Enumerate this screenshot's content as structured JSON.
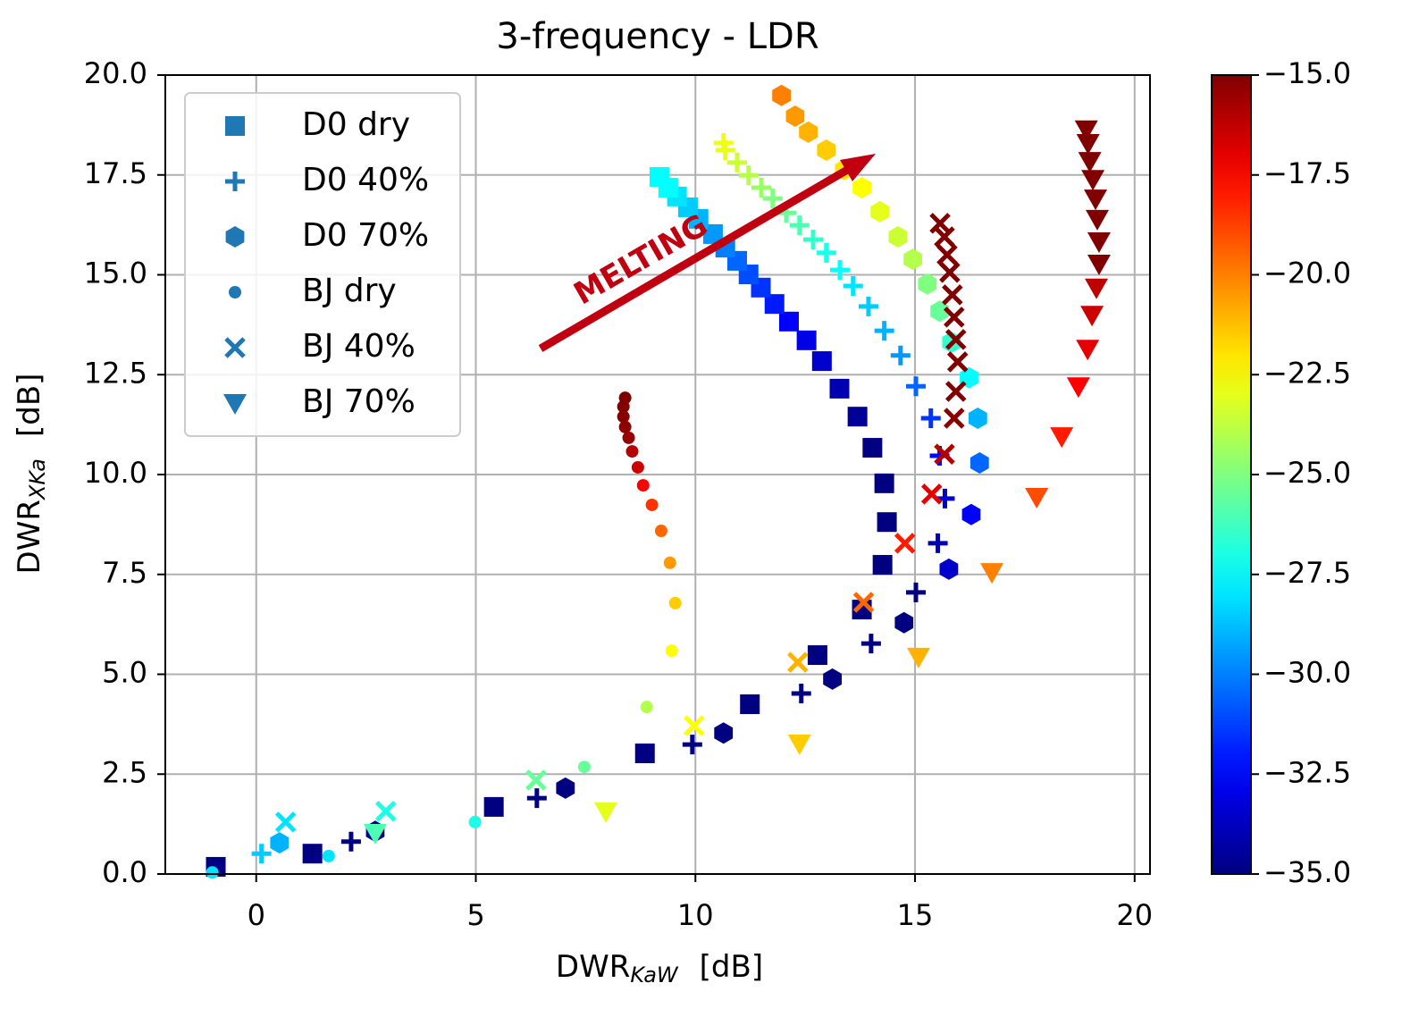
{
  "chart_data": {
    "type": "scatter",
    "title": "3-frequency - LDR",
    "xlabel": "DWR",
    "xlabel_sub": "KaW",
    "xlabel_unit": "[dB]",
    "ylabel": "DWR",
    "ylabel_sub": "XKa",
    "ylabel_unit": "[dB]",
    "xlim": [
      -2.07,
      20.35
    ],
    "ylim": [
      0,
      20
    ],
    "xticks": [
      0,
      5,
      10,
      15,
      20
    ],
    "yticks": [
      {
        "value": 0,
        "label": "0.0"
      },
      2.5,
      {
        "value": 5,
        "label": "5.0"
      },
      7.5,
      {
        "value": 10,
        "label": "10.0"
      },
      12.5,
      {
        "value": 15,
        "label": "15.0"
      },
      17.5,
      {
        "value": 20,
        "label": "20.0"
      }
    ],
    "grid": true,
    "legend": "upper left",
    "colormap": "jet",
    "clim": [
      -35,
      -15
    ],
    "cticks": [
      {
        "value": -35,
        "label": "−35.0"
      },
      {
        "value": -32.5,
        "label": "−32.5"
      },
      {
        "value": -30,
        "label": "−30.0"
      },
      {
        "value": -27.5,
        "label": "−27.5"
      },
      {
        "value": -25,
        "label": "−25.0"
      },
      {
        "value": -22.5,
        "label": "−22.5"
      },
      {
        "value": -20,
        "label": "−20.0"
      },
      {
        "value": -17.5,
        "label": "−17.5"
      },
      {
        "value": -15,
        "label": "−15.0"
      }
    ],
    "annotation": "MELTING",
    "series": [
      {
        "name": "D0 dry",
        "marker": "square",
        "color": "#1f77b4",
        "x": [
          -0.92,
          1.28,
          5.41,
          8.85,
          11.24,
          12.78,
          13.79,
          14.26,
          14.36,
          14.3,
          14.03,
          13.69,
          13.28,
          12.88,
          12.53,
          12.13,
          11.8,
          11.49,
          11.21,
          10.95,
          10.68,
          10.4,
          10.07,
          9.83,
          9.58,
          9.38,
          9.18
        ],
        "y": [
          0.18,
          0.51,
          1.68,
          3.02,
          4.25,
          5.48,
          6.62,
          7.74,
          8.81,
          9.78,
          10.67,
          11.45,
          12.15,
          12.84,
          13.36,
          13.83,
          14.27,
          14.68,
          15.01,
          15.35,
          15.68,
          16.02,
          16.4,
          16.69,
          16.96,
          17.18,
          17.45
        ],
        "c": [
          -35,
          -35,
          -35,
          -35,
          -35,
          -35,
          -35,
          -35,
          -35,
          -35,
          -35,
          -34.5,
          -34,
          -33.5,
          -33,
          -32.5,
          -32,
          -31.5,
          -31,
          -30.5,
          -30,
          -29.5,
          -29,
          -28.5,
          -28,
          -27.5,
          -27.5
        ]
      },
      {
        "name": "D0 40%",
        "marker": "plus",
        "color": "#1f77b4",
        "x": [
          0.12,
          2.16,
          6.39,
          9.93,
          12.41,
          14.0,
          15.02,
          15.52,
          15.68,
          15.56,
          15.36,
          15.02,
          14.67,
          14.3,
          13.94,
          13.59,
          13.29,
          12.98,
          12.68,
          12.37,
          12.07,
          11.76,
          11.5,
          11.21,
          10.95,
          10.68,
          10.64
        ],
        "y": [
          0.51,
          0.81,
          1.9,
          3.24,
          4.52,
          5.77,
          7.05,
          8.28,
          9.4,
          10.47,
          11.41,
          12.21,
          12.98,
          13.6,
          14.21,
          14.72,
          15.12,
          15.55,
          15.88,
          16.24,
          16.55,
          16.91,
          17.18,
          17.49,
          17.81,
          18.12,
          18.3
        ],
        "c": [
          -28.5,
          -35,
          -35,
          -35,
          -35,
          -35,
          -35,
          -34,
          -33.5,
          -32.5,
          -31.5,
          -30.5,
          -29.5,
          -29,
          -28.5,
          -28,
          -27.5,
          -27,
          -26.5,
          -26,
          -25.5,
          -25,
          -24.5,
          -24,
          -23.5,
          -23,
          -22.8
        ]
      },
      {
        "name": "D0 70%",
        "marker": "hexagon",
        "color": "#1f77b4",
        "x": [
          0.53,
          2.71,
          7.04,
          10.64,
          13.12,
          14.75,
          15.77,
          16.28,
          16.47,
          16.43,
          16.23,
          15.83,
          15.56,
          15.28,
          14.95,
          14.61,
          14.2,
          13.79,
          13.39,
          12.98,
          12.57,
          12.27,
          11.96
        ],
        "y": [
          0.78,
          1.07,
          2.15,
          3.53,
          4.88,
          6.29,
          7.63,
          9.0,
          10.29,
          11.41,
          12.42,
          13.31,
          14.09,
          14.77,
          15.39,
          15.95,
          16.58,
          17.18,
          17.63,
          18.12,
          18.57,
          18.97,
          19.49
        ],
        "c": [
          -29,
          -35,
          -35,
          -35,
          -35,
          -35,
          -33.5,
          -32.5,
          -30.5,
          -29,
          -27.5,
          -26.5,
          -25.5,
          -25,
          -24,
          -23.5,
          -23,
          -22.5,
          -22,
          -21.5,
          -21,
          -20.5,
          -20
        ]
      },
      {
        "name": "BJ dry",
        "marker": "dot",
        "color": "#1f77b4",
        "x": [
          -1.0,
          1.65,
          4.98,
          7.47,
          8.89,
          9.46,
          9.54,
          9.42,
          9.22,
          9.01,
          8.81,
          8.69,
          8.56,
          8.48,
          8.4,
          8.36,
          8.36,
          8.4
        ],
        "y": [
          0.04,
          0.45,
          1.3,
          2.68,
          4.18,
          5.59,
          6.78,
          7.79,
          8.59,
          9.24,
          9.73,
          10.18,
          10.58,
          10.92,
          11.19,
          11.45,
          11.7,
          11.92
        ],
        "c": [
          -28,
          -28,
          -27,
          -25.5,
          -24,
          -22.5,
          -21.5,
          -20.5,
          -19.5,
          -18.5,
          -17.5,
          -16.5,
          -16,
          -15.5,
          -15.3,
          -15.2,
          -15.1,
          -15
        ]
      },
      {
        "name": "BJ 40%",
        "marker": "x",
        "color": "#1f77b4",
        "x": [
          0.67,
          2.95,
          6.37,
          9.97,
          12.33,
          13.83,
          14.77,
          15.38,
          15.67,
          15.89,
          15.93,
          15.97,
          15.93,
          15.89,
          15.85,
          15.79,
          15.73,
          15.67,
          15.57
        ],
        "y": [
          1.3,
          1.57,
          2.35,
          3.71,
          5.3,
          6.8,
          8.28,
          9.51,
          10.51,
          11.41,
          12.08,
          12.82,
          13.38,
          13.94,
          14.5,
          15.06,
          15.5,
          15.95,
          16.29
        ],
        "c": [
          -28,
          -27,
          -25.5,
          -22.5,
          -21,
          -19.5,
          -18,
          -17,
          -16,
          -15.2,
          -15,
          -15,
          -15,
          -15,
          -15,
          -15,
          -15,
          -15,
          -15
        ]
      },
      {
        "name": "BJ 70%",
        "marker": "triangle-down",
        "color": "#1f77b4",
        "x": [
          2.71,
          7.96,
          12.37,
          15.08,
          16.75,
          17.77,
          18.34,
          18.72,
          18.93,
          19.03,
          19.13,
          19.19,
          19.19,
          19.15,
          19.11,
          19.05,
          18.98,
          18.94,
          18.9
        ],
        "y": [
          1.03,
          1.57,
          3.27,
          5.44,
          7.56,
          9.44,
          10.96,
          12.21,
          13.15,
          14.0,
          14.68,
          15.28,
          15.84,
          16.4,
          16.91,
          17.4,
          17.85,
          18.3,
          18.64
        ],
        "c": [
          -26,
          -23,
          -21.5,
          -21,
          -20,
          -19,
          -18,
          -17.5,
          -17,
          -16.5,
          -16.2,
          -15,
          -15,
          -15,
          -15,
          -15,
          -15,
          -15,
          -15
        ]
      }
    ]
  }
}
